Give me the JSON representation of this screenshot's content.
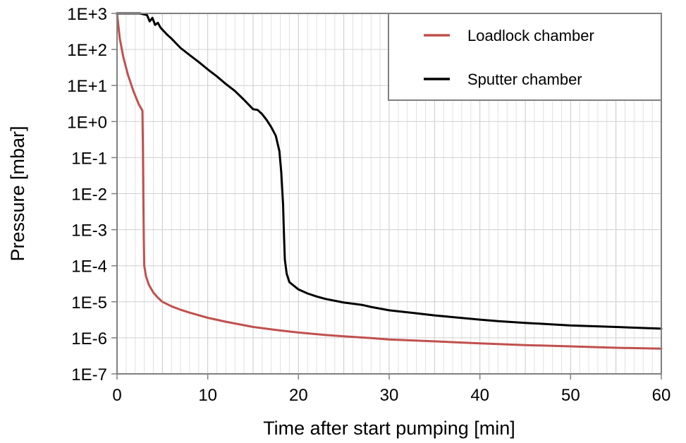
{
  "chart_data": {
    "type": "line",
    "title": "",
    "xlabel": "Time after start pumping [min]",
    "ylabel": "Pressure [mbar]",
    "xlim": [
      0,
      60
    ],
    "ylim": [
      1e-07,
      1000
    ],
    "yscale": "log",
    "grid": true,
    "legend_position": "top-right",
    "x_ticks": [
      0,
      10,
      20,
      30,
      40,
      50,
      60
    ],
    "x_tick_labels": [
      "0",
      "10",
      "20",
      "30",
      "40",
      "50",
      "60"
    ],
    "y_ticks": [
      1000,
      100,
      10,
      1,
      0.1,
      0.01,
      0.001,
      0.0001,
      1e-05,
      1e-06,
      1e-07
    ],
    "y_tick_labels": [
      "1E+3",
      "1E+2",
      "1E+1",
      "1E+0",
      "1E-1",
      "1E-2",
      "1E-3",
      "1E-4",
      "1E-5",
      "1E-6",
      "1E-7"
    ],
    "series": [
      {
        "name": "Loadlock chamber",
        "color": "#c0504d",
        "points": [
          [
            0,
            1000
          ],
          [
            0.3,
            200
          ],
          [
            0.7,
            60
          ],
          [
            1.2,
            20
          ],
          [
            1.8,
            7
          ],
          [
            2.4,
            3
          ],
          [
            2.8,
            2
          ],
          [
            2.85,
            0.2
          ],
          [
            2.9,
            0.01
          ],
          [
            2.95,
            0.0005
          ],
          [
            3.0,
            0.0001
          ],
          [
            3.2,
            5e-05
          ],
          [
            3.5,
            3e-05
          ],
          [
            4,
            1.8e-05
          ],
          [
            4.5,
            1.3e-05
          ],
          [
            5,
            1e-05
          ],
          [
            6,
            7.5e-06
          ],
          [
            7,
            6e-06
          ],
          [
            8,
            5e-06
          ],
          [
            10,
            3.6e-06
          ],
          [
            12,
            2.8e-06
          ],
          [
            15,
            2e-06
          ],
          [
            18,
            1.6e-06
          ],
          [
            20,
            1.4e-06
          ],
          [
            23,
            1.2e-06
          ],
          [
            25,
            1.1e-06
          ],
          [
            28,
            9.8e-07
          ],
          [
            30,
            9e-07
          ],
          [
            35,
            8e-07
          ],
          [
            40,
            7e-07
          ],
          [
            45,
            6.3e-07
          ],
          [
            50,
            5.8e-07
          ],
          [
            55,
            5.3e-07
          ],
          [
            60,
            5e-07
          ]
        ]
      },
      {
        "name": "Sputter chamber",
        "color": "#000000",
        "points": [
          [
            0,
            1000
          ],
          [
            2.5,
            1000
          ],
          [
            3.3,
            900
          ],
          [
            3.6,
            600
          ],
          [
            3.9,
            750
          ],
          [
            4.2,
            480
          ],
          [
            4.5,
            550
          ],
          [
            4.8,
            400
          ],
          [
            5.5,
            260
          ],
          [
            6,
            200
          ],
          [
            7,
            110
          ],
          [
            8,
            70
          ],
          [
            9,
            45
          ],
          [
            10,
            28
          ],
          [
            11,
            18
          ],
          [
            12,
            11
          ],
          [
            13,
            7
          ],
          [
            14,
            4
          ],
          [
            15,
            2.2
          ],
          [
            15.5,
            2.1
          ],
          [
            16,
            1.6
          ],
          [
            16.5,
            1.1
          ],
          [
            17,
            0.7
          ],
          [
            17.5,
            0.4
          ],
          [
            17.9,
            0.15
          ],
          [
            18.1,
            0.04
          ],
          [
            18.3,
            0.005
          ],
          [
            18.4,
            0.0008
          ],
          [
            18.5,
            0.00015
          ],
          [
            18.7,
            6e-05
          ],
          [
            19,
            3.5e-05
          ],
          [
            20,
            2.2e-05
          ],
          [
            21,
            1.7e-05
          ],
          [
            22,
            1.4e-05
          ],
          [
            23,
            1.2e-05
          ],
          [
            25,
            9.5e-06
          ],
          [
            27,
            8.2e-06
          ],
          [
            28,
            7.2e-06
          ],
          [
            30,
            5.8e-06
          ],
          [
            33,
            4.8e-06
          ],
          [
            35,
            4.2e-06
          ],
          [
            40,
            3.2e-06
          ],
          [
            42,
            2.9e-06
          ],
          [
            45,
            2.6e-06
          ],
          [
            50,
            2.2e-06
          ],
          [
            55,
            2e-06
          ],
          [
            60,
            1.8e-06
          ]
        ]
      }
    ]
  }
}
